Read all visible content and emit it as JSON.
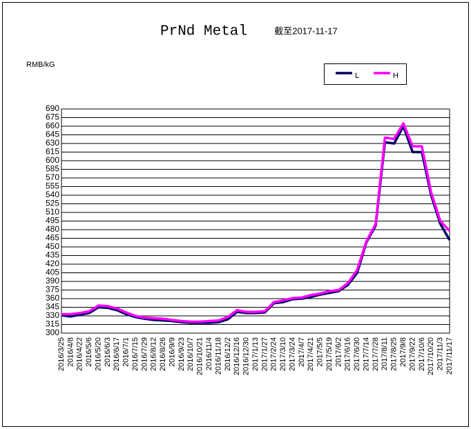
{
  "chart_data": {
    "type": "line",
    "title": "PrNd Metal",
    "subtitle": "截至2017-11-17",
    "y_label": "RMB/kG",
    "categories": [
      "2016/3/25",
      "2016/4/8",
      "2016/4/22",
      "2016/5/6",
      "2016/5/20",
      "2016/6/3",
      "2016/6/17",
      "2016/7/1",
      "2016/7/15",
      "2016/7/29",
      "2016/8/12",
      "2016/8/26",
      "2016/9/9",
      "2016/9/23",
      "2016/10/7",
      "2016/10/21",
      "2016/11/4",
      "2016/11/18",
      "2016/12/2",
      "2016/12/16",
      "2016/12/30",
      "2017/1/13",
      "2017/1/27",
      "2017/2/24",
      "2017/3/10",
      "2017/3/24",
      "2017/4/7",
      "2017/4/21",
      "2017/5/5",
      "2017/5/19",
      "2017/6/2",
      "2017/6/16",
      "2017/6/30",
      "2017/7/14",
      "2017/7/28",
      "2017/8/11",
      "2017/8/25",
      "2017/9/8",
      "2017/9/22",
      "2017/10/6",
      "2017/10/20",
      "2017/11/3",
      "2017/11/17"
    ],
    "series": [
      {
        "name": "L",
        "color": "#000066",
        "values": [
          331,
          329,
          332,
          335,
          345,
          344,
          340,
          333,
          328,
          325,
          323,
          322,
          321,
          319,
          318,
          318,
          318,
          319,
          324,
          337,
          335,
          335,
          336,
          352,
          354,
          359,
          360,
          363,
          367,
          370,
          373,
          384,
          405,
          458,
          487,
          632,
          630,
          660,
          615,
          615,
          540,
          490,
          462
        ]
      },
      {
        "name": "H",
        "color": "#ff00ff",
        "values": [
          333,
          333,
          335,
          338,
          348,
          347,
          343,
          336,
          330,
          327,
          326,
          325,
          323,
          321,
          320,
          320,
          321,
          322,
          328,
          340,
          337,
          337,
          338,
          354,
          357,
          361,
          362,
          366,
          369,
          373,
          375,
          387,
          410,
          460,
          490,
          640,
          638,
          665,
          625,
          625,
          545,
          495,
          478
        ]
      }
    ],
    "ylim": [
      300,
      690
    ],
    "yticks": [
      300,
      315,
      330,
      345,
      360,
      375,
      390,
      405,
      420,
      435,
      450,
      465,
      480,
      495,
      510,
      525,
      540,
      555,
      570,
      585,
      600,
      615,
      630,
      645,
      660,
      675,
      690
    ],
    "grid": true
  }
}
